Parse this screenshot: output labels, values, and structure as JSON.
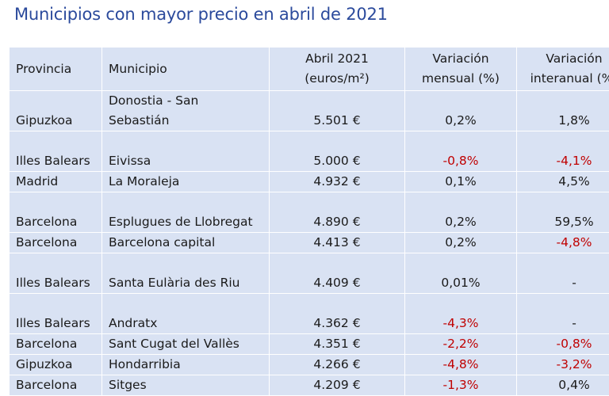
{
  "title": "Municipios con mayor precio en abril de 2021",
  "headers": {
    "provincia": "Provincia",
    "municipio": "Municipio",
    "precio": "Abril 2021 (euros/m²)",
    "mensual": "Variación mensual (%)",
    "interanual": "Variación interanual (%)"
  },
  "colors": {
    "title": "#2b4a9c",
    "table_bg": "#d9e2f3",
    "negative": "#c00000"
  },
  "rows": [
    {
      "provincia": "Gipuzkoa",
      "municipio": "Donostia - San Sebastián",
      "precio": "5.501 €",
      "mensual": "0,2%",
      "interanual": "1,8%"
    },
    {
      "provincia": "Illes Balears",
      "municipio": "Eivissa",
      "precio": "5.000 €",
      "mensual": "-0,8%",
      "interanual": "-4,1%"
    },
    {
      "provincia": "Madrid",
      "municipio": "La Moraleja",
      "precio": "4.932 €",
      "mensual": "0,1%",
      "interanual": "4,5%"
    },
    {
      "provincia": "Barcelona",
      "municipio": "Esplugues de Llobregat",
      "precio": "4.890 €",
      "mensual": "0,2%",
      "interanual": "59,5%"
    },
    {
      "provincia": "Barcelona",
      "municipio": "Barcelona capital",
      "precio": "4.413 €",
      "mensual": "0,2%",
      "interanual": "-4,8%"
    },
    {
      "provincia": "Illes Balears",
      "municipio": "Santa Eulària des Riu",
      "precio": "4.409 €",
      "mensual": "0,01%",
      "interanual": "-"
    },
    {
      "provincia": "Illes Balears",
      "municipio": "Andratx",
      "precio": "4.362 €",
      "mensual": "-4,3%",
      "interanual": "-"
    },
    {
      "provincia": "Barcelona",
      "municipio": "Sant Cugat del Vallès",
      "precio": "4.351 €",
      "mensual": "-2,2%",
      "interanual": "-0,8%"
    },
    {
      "provincia": "Gipuzkoa",
      "municipio": "Hondarribia",
      "precio": "4.266 €",
      "mensual": "-4,8%",
      "interanual": "-3,2%"
    },
    {
      "provincia": "Barcelona",
      "municipio": "Sitges",
      "precio": "4.209 €",
      "mensual": "-1,3%",
      "interanual": "0,4%"
    }
  ]
}
